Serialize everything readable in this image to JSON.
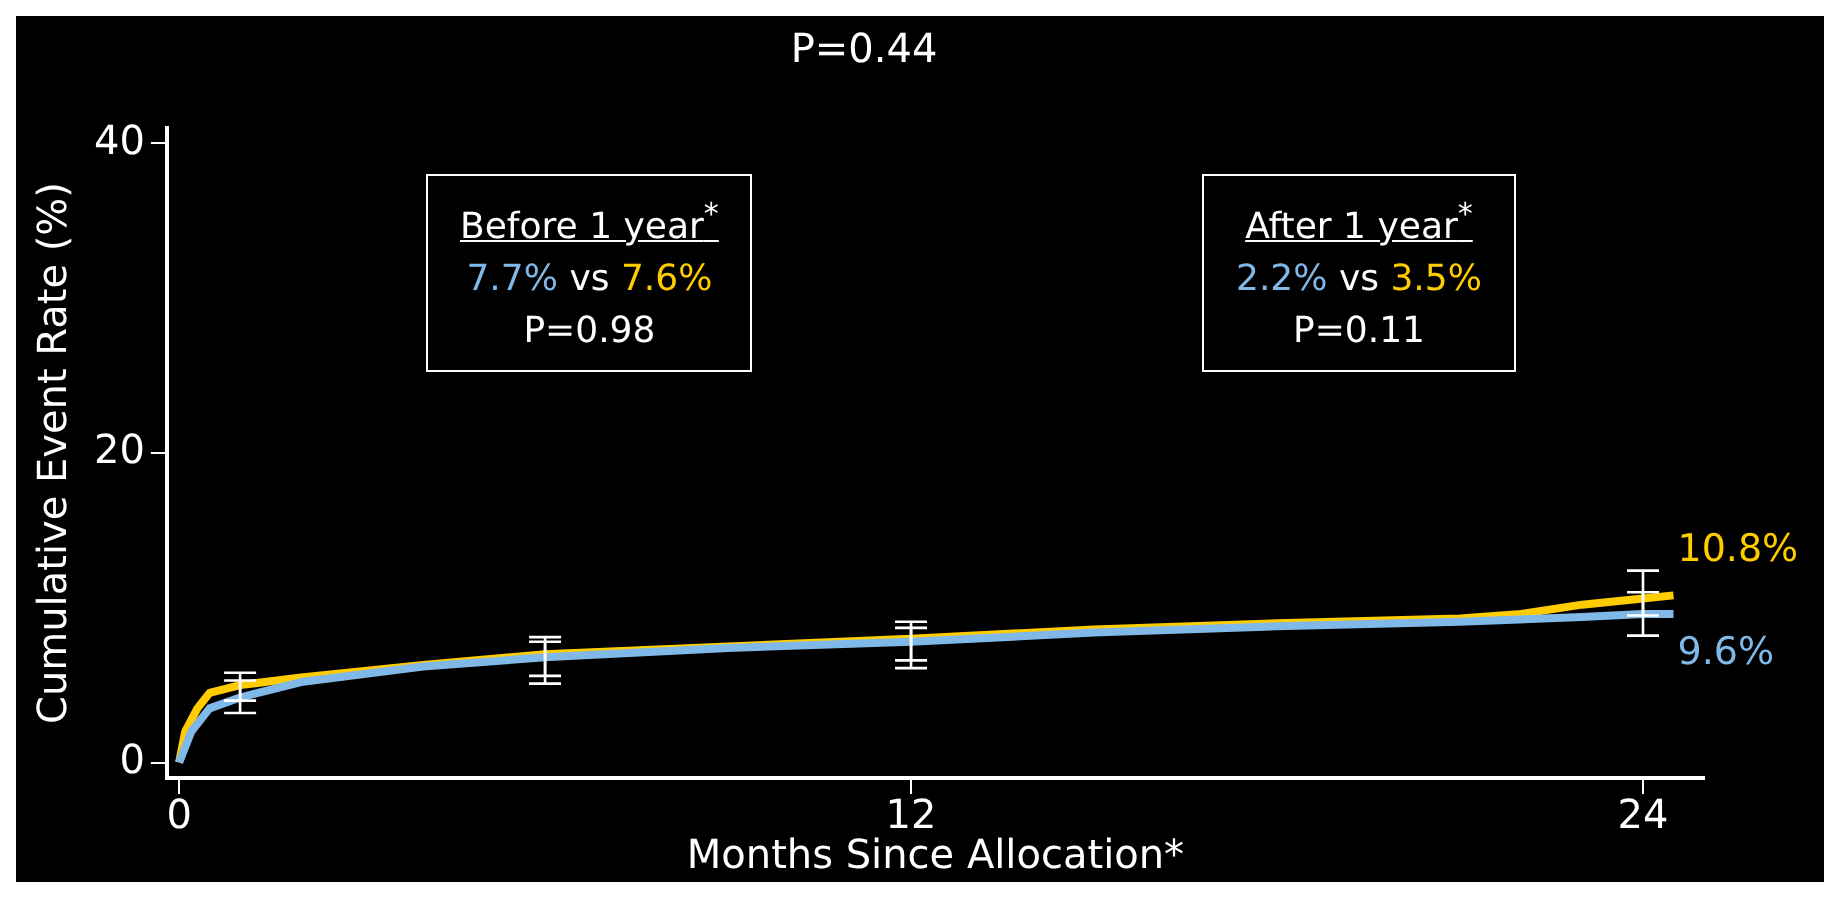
{
  "chart_data": {
    "type": "line",
    "title": "P=0.44",
    "xlabel": "Months Since Allocation*",
    "ylabel": "Cumulative Event Rate (%)",
    "xlim": [
      -0.2,
      25
    ],
    "ylim": [
      -1,
      41
    ],
    "xticks": [
      0,
      12,
      24
    ],
    "yticks": [
      0,
      20,
      40
    ],
    "grid": false,
    "legend": false,
    "marker": "none",
    "line_style": "solid",
    "series": [
      {
        "color": "#80b8e8",
        "x": [
          0,
          0.2,
          0.5,
          1,
          2,
          4,
          6,
          9,
          12,
          15,
          18,
          21,
          23,
          24,
          24.5
        ],
        "values": [
          0,
          2,
          3.5,
          4.2,
          5.2,
          6.2,
          6.8,
          7.4,
          7.8,
          8.4,
          8.8,
          9.1,
          9.4,
          9.6,
          9.6
        ],
        "errors": [
          null,
          null,
          null,
          [
            3.2,
            5.3
          ],
          null,
          null,
          [
            5.1,
            7.8
          ],
          null,
          [
            6.1,
            8.7
          ],
          null,
          null,
          null,
          null,
          [
            8.2,
            11
          ],
          null
        ]
      },
      {
        "color": "#ffcc00",
        "x": [
          0,
          0.1,
          0.3,
          0.5,
          1,
          2,
          4,
          6,
          9,
          12,
          15,
          18,
          21,
          22,
          23,
          24,
          24.5
        ],
        "values": [
          0,
          2,
          3.5,
          4.5,
          5,
          5.5,
          6.3,
          7,
          7.5,
          8,
          8.6,
          9,
          9.3,
          9.6,
          10.2,
          10.6,
          10.8
        ],
        "errors": [
          null,
          null,
          null,
          null,
          [
            4,
            5.8
          ],
          null,
          null,
          [
            5.6,
            8.1
          ],
          null,
          [
            6.6,
            9.1
          ],
          null,
          null,
          null,
          null,
          null,
          [
            9.5,
            12.4
          ],
          null
        ]
      }
    ],
    "annotations": [
      "Before 1 year$^{*}$",
      "7.7%",
      "vs",
      "7.6%",
      "P=0.98",
      "After 1 year$^{*}$",
      "2.2%",
      "vs",
      "3.5%",
      "P=0.11",
      {
        "text": "10.8%",
        "x": 24.5,
        "y": 10.8
      },
      {
        "text": "9.6%",
        "x": 24.5,
        "y": 9.6
      }
    ]
  }
}
